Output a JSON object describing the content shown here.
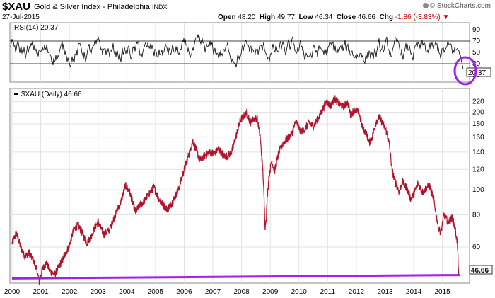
{
  "header": {
    "symbol": "$XAU",
    "name": "Gold & Silver Index - Philadelphia",
    "exchange": "INDX",
    "date": "27-Jul-2015",
    "brand": "© StockCharts.com",
    "open_label": "Open",
    "open": "48.20",
    "high_label": "High",
    "high": "49.77",
    "low_label": "Low",
    "low": "46.34",
    "close_label": "Close",
    "close": "46.66",
    "chg_label": "Chg",
    "chg": "-1.86 (-3.83%)",
    "chg_arrow": "▼"
  },
  "colors": {
    "price": "#b0142c",
    "support": "#a020f0",
    "circle": "#a020f0",
    "rsi": "#000000"
  },
  "chart_data": [
    {
      "type": "line",
      "legend": "RSI(14) 20.37",
      "ylim": [
        0,
        100
      ],
      "y_ticks": [
        "10",
        "30",
        "50",
        "70",
        "90"
      ],
      "guide_lines": [
        30,
        70
      ],
      "last_value": "20.37",
      "series": [
        {
          "name": "RSI(14)",
          "oscillation": [
            30,
            70
          ],
          "last": 20.37
        }
      ],
      "annotation": "circle around latest RSI reading"
    },
    {
      "type": "line",
      "legend": "$XAU (Daily) 46.66",
      "scale": "log",
      "ylim": [
        44,
        235
      ],
      "y_ticks": [
        "60",
        "80",
        "100",
        "120",
        "140",
        "160",
        "180",
        "200",
        "220"
      ],
      "x_ticks": [
        "2000",
        "2001",
        "2002",
        "2003",
        "2004",
        "2005",
        "2006",
        "2007",
        "2008",
        "2009",
        "2010",
        "2011",
        "2012",
        "2013",
        "2014",
        "2015"
      ],
      "last_value": "46.66",
      "series": [
        {
          "name": "$XAU (Daily)",
          "points": [
            [
              2000.0,
              62
            ],
            [
              2000.15,
              68
            ],
            [
              2000.3,
              60
            ],
            [
              2000.45,
              55
            ],
            [
              2000.6,
              57
            ],
            [
              2000.75,
              53
            ],
            [
              2000.88,
              48
            ],
            [
              2000.95,
              44
            ],
            [
              2001.05,
              49
            ],
            [
              2001.2,
              52
            ],
            [
              2001.35,
              48
            ],
            [
              2001.5,
              47
            ],
            [
              2001.7,
              52
            ],
            [
              2001.85,
              56
            ],
            [
              2002.0,
              61
            ],
            [
              2002.15,
              70
            ],
            [
              2002.3,
              73
            ],
            [
              2002.45,
              68
            ],
            [
              2002.6,
              62
            ],
            [
              2002.75,
              66
            ],
            [
              2002.9,
              72
            ],
            [
              2003.0,
              75
            ],
            [
              2003.2,
              67
            ],
            [
              2003.4,
              70
            ],
            [
              2003.6,
              80
            ],
            [
              2003.8,
              90
            ],
            [
              2003.95,
              104
            ],
            [
              2004.1,
              98
            ],
            [
              2004.3,
              82
            ],
            [
              2004.45,
              87
            ],
            [
              2004.6,
              90
            ],
            [
              2004.8,
              98
            ],
            [
              2004.95,
              102
            ],
            [
              2005.1,
              93
            ],
            [
              2005.25,
              88
            ],
            [
              2005.4,
              84
            ],
            [
              2005.6,
              90
            ],
            [
              2005.8,
              100
            ],
            [
              2005.95,
              115
            ],
            [
              2006.1,
              130
            ],
            [
              2006.3,
              155
            ],
            [
              2006.4,
              145
            ],
            [
              2006.55,
              130
            ],
            [
              2006.7,
              135
            ],
            [
              2006.9,
              140
            ],
            [
              2007.05,
              138
            ],
            [
              2007.2,
              145
            ],
            [
              2007.35,
              136
            ],
            [
              2007.5,
              135
            ],
            [
              2007.65,
              140
            ],
            [
              2007.8,
              160
            ],
            [
              2007.95,
              185
            ],
            [
              2008.1,
              195
            ],
            [
              2008.2,
              200
            ],
            [
              2008.3,
              182
            ],
            [
              2008.45,
              190
            ],
            [
              2008.55,
              188
            ],
            [
              2008.65,
              160
            ],
            [
              2008.75,
              115
            ],
            [
              2008.82,
              72
            ],
            [
              2008.86,
              78
            ],
            [
              2008.9,
              95
            ],
            [
              2008.95,
              112
            ],
            [
              2009.05,
              130
            ],
            [
              2009.15,
              118
            ],
            [
              2009.3,
              140
            ],
            [
              2009.45,
              152
            ],
            [
              2009.6,
              158
            ],
            [
              2009.75,
              165
            ],
            [
              2009.9,
              185
            ],
            [
              2010.05,
              168
            ],
            [
              2010.2,
              172
            ],
            [
              2010.35,
              182
            ],
            [
              2010.5,
              176
            ],
            [
              2010.65,
              188
            ],
            [
              2010.8,
              202
            ],
            [
              2010.95,
              220
            ],
            [
              2011.1,
              212
            ],
            [
              2011.25,
              226
            ],
            [
              2011.4,
              215
            ],
            [
              2011.55,
              210
            ],
            [
              2011.7,
              218
            ],
            [
              2011.8,
              195
            ],
            [
              2011.95,
              205
            ],
            [
              2012.1,
              198
            ],
            [
              2012.2,
              176
            ],
            [
              2012.35,
              165
            ],
            [
              2012.45,
              152
            ],
            [
              2012.55,
              160
            ],
            [
              2012.7,
              185
            ],
            [
              2012.8,
              192
            ],
            [
              2012.95,
              178
            ],
            [
              2013.05,
              168
            ],
            [
              2013.15,
              150
            ],
            [
              2013.25,
              118
            ],
            [
              2013.35,
              108
            ],
            [
              2013.5,
              98
            ],
            [
              2013.6,
              108
            ],
            [
              2013.75,
              102
            ],
            [
              2013.9,
              92
            ],
            [
              2014.0,
              96
            ],
            [
              2014.15,
              106
            ],
            [
              2014.3,
              98
            ],
            [
              2014.45,
              102
            ],
            [
              2014.55,
              104
            ],
            [
              2014.7,
              92
            ],
            [
              2014.85,
              72
            ],
            [
              2014.95,
              68
            ],
            [
              2015.05,
              80
            ],
            [
              2015.2,
              75
            ],
            [
              2015.35,
              78
            ],
            [
              2015.45,
              70
            ],
            [
              2015.52,
              62
            ],
            [
              2015.57,
              46.66
            ]
          ]
        }
      ],
      "support_line": {
        "from": [
          2000.0,
          45.3
        ],
        "to": [
          2015.6,
          46.7
        ]
      }
    }
  ]
}
